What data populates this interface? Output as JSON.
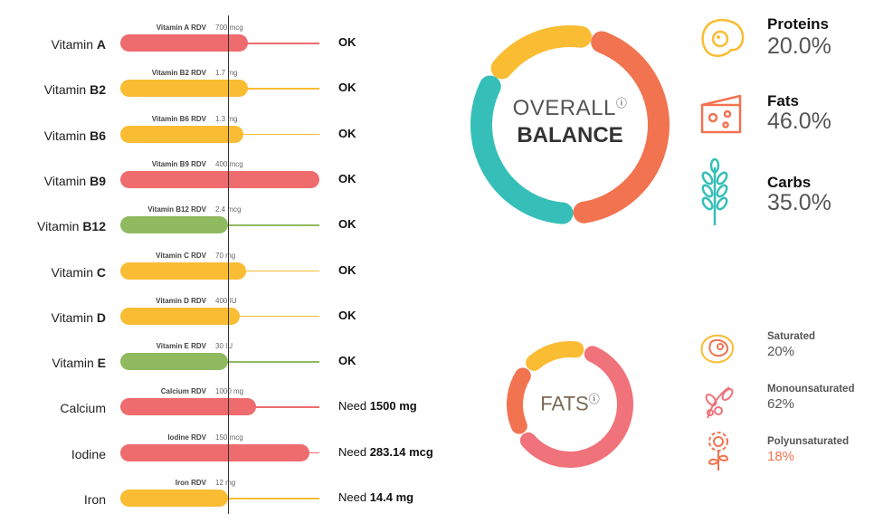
{
  "vitamins": [
    {
      "prefix": "Vitamin ",
      "bold": "A",
      "rdv_label": "Vitamin A RDV",
      "rdv_value": "700 mcg",
      "fill": 0.64,
      "color": "#ee6b6e",
      "status": "OK",
      "need": null
    },
    {
      "prefix": "Vitamin ",
      "bold": "B2",
      "rdv_label": "Vitamin B2 RDV",
      "rdv_value": "1.7 mg",
      "fill": 0.64,
      "color": "#f9bc33",
      "status": "OK",
      "need": null
    },
    {
      "prefix": "Vitamin ",
      "bold": "B6",
      "rdv_label": "Vitamin B6 RDV",
      "rdv_value": "1.3 mg",
      "fill": 0.62,
      "color": "#f9bc33",
      "status": "OK",
      "need": null
    },
    {
      "prefix": "Vitamin ",
      "bold": "B9",
      "rdv_label": "Vitamin B9 RDV",
      "rdv_value": "400 mcg",
      "fill": 1.0,
      "color": "#ee6b6e",
      "status": "OK",
      "need": null
    },
    {
      "prefix": "Vitamin ",
      "bold": "B12",
      "rdv_label": "Vitamin B12 RDV",
      "rdv_value": "2.4 mcg",
      "fill": 0.54,
      "color": "#8fba5f",
      "status": "OK",
      "need": null
    },
    {
      "prefix": "Vitamin ",
      "bold": "C",
      "rdv_label": "Vitamin C RDV",
      "rdv_value": "70 mg",
      "fill": 0.63,
      "color": "#f9bc33",
      "status": "OK",
      "need": null
    },
    {
      "prefix": "Vitamin ",
      "bold": "D",
      "rdv_label": "Vitamin D RDV",
      "rdv_value": "400 IU",
      "fill": 0.6,
      "color": "#f9bc33",
      "status": "OK",
      "need": null
    },
    {
      "prefix": "Vitamin ",
      "bold": "E",
      "rdv_label": "Vitamin E RDV",
      "rdv_value": "30 IU",
      "fill": 0.54,
      "color": "#8fba5f",
      "status": "OK",
      "need": null
    },
    {
      "prefix": "Calcium",
      "bold": "",
      "rdv_label": "Calcium RDV",
      "rdv_value": "1000 mg",
      "fill": 0.68,
      "color": "#ee6b6e",
      "status": "Need ",
      "need": "1500 mg"
    },
    {
      "prefix": "Iodine",
      "bold": "",
      "rdv_label": "Iodine RDV",
      "rdv_value": "150 mcg",
      "fill": 0.95,
      "color": "#ee6b6e",
      "status": "Need ",
      "need": "283.14 mcg"
    },
    {
      "prefix": "Iron",
      "bold": "",
      "rdv_label": "Iron RDV",
      "rdv_value": "12 mg",
      "fill": 0.54,
      "color": "#f9bc33",
      "status": "Need ",
      "need": "14.4 mg"
    }
  ],
  "overall": {
    "title_top": "OVERALL",
    "title_bottom": "BALANCE",
    "info_glyph": "ⓘ",
    "macros": [
      {
        "name": "Proteins",
        "value": "20.0%",
        "percent": 20.0,
        "color": "#f9bc33",
        "icon": "egg-icon"
      },
      {
        "name": "Fats",
        "value": "46.0%",
        "percent": 46.0,
        "color": "#f27350",
        "icon": "cheese-icon"
      },
      {
        "name": "Carbs",
        "value": "35.0%",
        "percent": 35.0,
        "color": "#35bfb8",
        "icon": "wheat-icon"
      }
    ]
  },
  "fats": {
    "title": "FATS",
    "info_glyph": "ⓘ",
    "items": [
      {
        "name": "Saturated",
        "value": "20%",
        "percent": 20,
        "color": "#f27350",
        "icon": "steak-icon"
      },
      {
        "name": "Monounsaturated",
        "value": "62%",
        "percent": 62,
        "color": "#f0727a",
        "icon": "olive-icon"
      },
      {
        "name": "Polyunsaturated",
        "value": "18%",
        "percent": 18,
        "color": "#f9bc33",
        "icon": "sunflower-icon"
      }
    ]
  },
  "chart_data": [
    {
      "type": "bar",
      "title": "",
      "categories": [
        "Vitamin A",
        "Vitamin B2",
        "Vitamin B6",
        "Vitamin B9",
        "Vitamin B12",
        "Vitamin C",
        "Vitamin D",
        "Vitamin E",
        "Calcium",
        "Iodine",
        "Iron"
      ],
      "values_fraction_of_track": [
        0.64,
        0.64,
        0.62,
        1.0,
        0.54,
        0.63,
        0.6,
        0.54,
        0.68,
        0.95,
        0.54
      ]
    },
    {
      "type": "pie",
      "title": "OVERALL BALANCE",
      "labels": [
        "Proteins",
        "Fats",
        "Carbs"
      ],
      "values": [
        20.0,
        46.0,
        35.0
      ]
    },
    {
      "type": "pie",
      "title": "FATS",
      "labels": [
        "Saturated",
        "Monounsaturated",
        "Polyunsaturated"
      ],
      "values": [
        20,
        62,
        18
      ]
    }
  ]
}
